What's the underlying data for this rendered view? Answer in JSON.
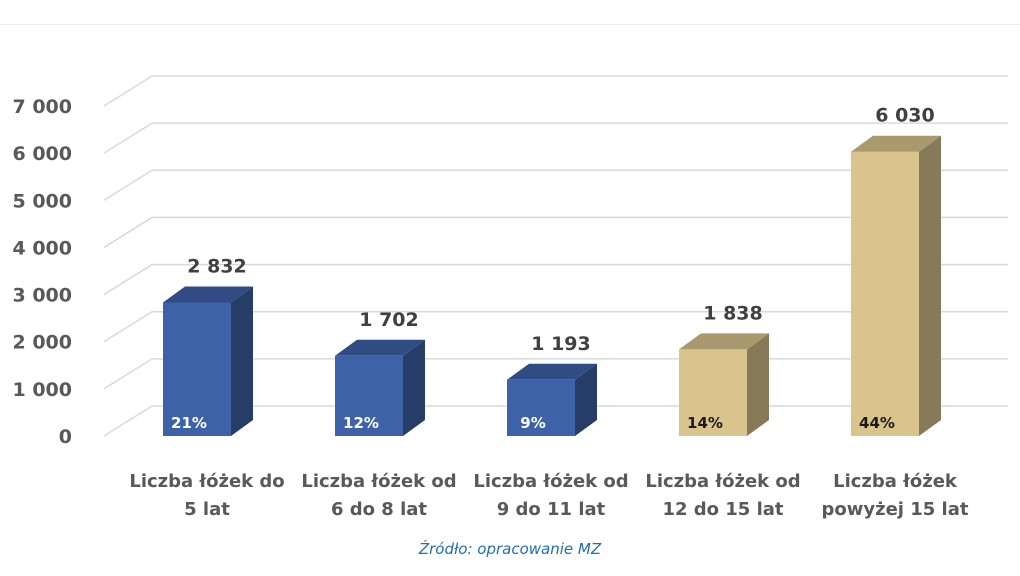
{
  "chart_data": {
    "type": "bar",
    "title": "",
    "xlabel": "",
    "ylabel": "",
    "ylim": [
      0,
      7000
    ],
    "yticks": [
      0,
      1000,
      2000,
      3000,
      4000,
      5000,
      6000,
      7000
    ],
    "ytick_labels": [
      "0",
      "1 000",
      "2 000",
      "3 000",
      "4 000",
      "5 000",
      "6 000",
      "7 000"
    ],
    "categories": [
      [
        "Liczba łóżek do",
        "5 lat"
      ],
      [
        "Liczba łóżek od",
        "6 do 8 lat"
      ],
      [
        "Liczba łóżek od",
        "9 do 11 lat"
      ],
      [
        "Liczba łóżek od",
        "12 do 15 lat"
      ],
      [
        "Liczba łóżek",
        "powyżej 15 lat"
      ]
    ],
    "values": [
      2832,
      1702,
      1193,
      1838,
      6030
    ],
    "value_labels": [
      "2 832",
      "1 702",
      "1 193",
      "1 838",
      "6 030"
    ],
    "percent_labels": [
      "21%",
      "12%",
      "9%",
      "14%",
      "44%"
    ],
    "bar_colors": [
      "#3d62a8",
      "#3d62a8",
      "#3d62a8",
      "#d9c48e",
      "#d9c48e"
    ],
    "grid": true,
    "style": "3d-column"
  },
  "source_text": "Źródło: opracowanie MZ"
}
